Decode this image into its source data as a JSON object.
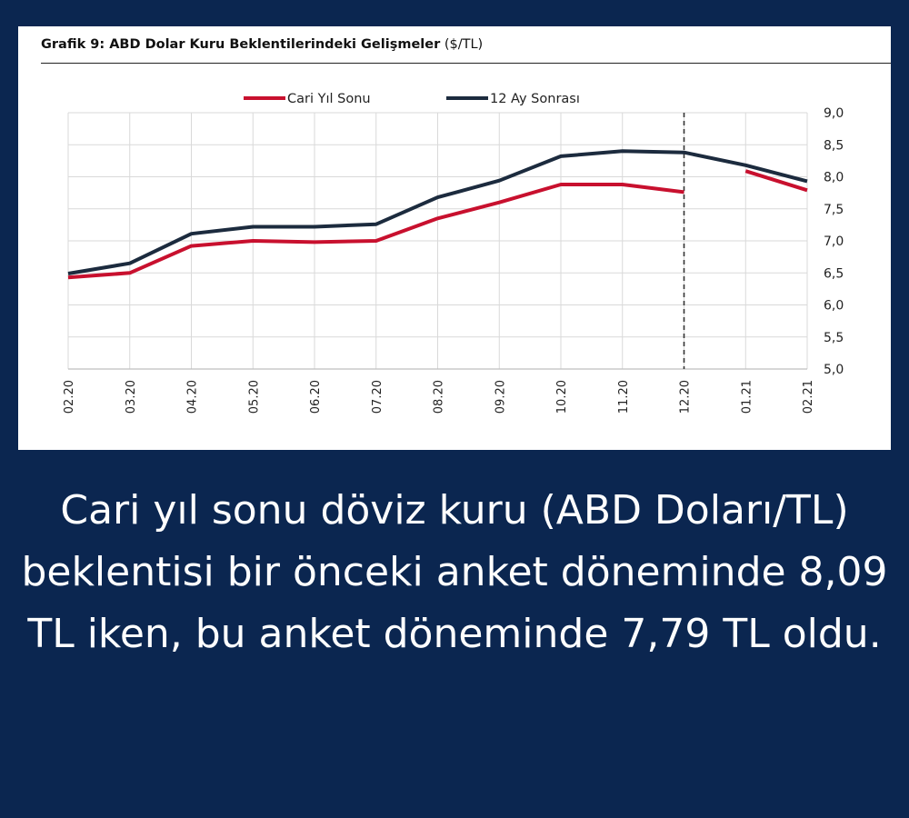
{
  "chart_data": {
    "type": "line",
    "title_bold": "Grafik 9: ABD Dolar Kuru Beklentilerindeki Gelişmeler",
    "title_unit": "($/TL)",
    "categories": [
      "02.20",
      "03.20",
      "04.20",
      "05.20",
      "06.20",
      "07.20",
      "08.20",
      "09.20",
      "10.20",
      "11.20",
      "12.20",
      "01.21",
      "02.21"
    ],
    "ylim": [
      5.0,
      9.0
    ],
    "yticks": [
      "5,0",
      "5,5",
      "6,0",
      "6,5",
      "7,0",
      "7,5",
      "8,0",
      "8,5",
      "9,0"
    ],
    "y_axis_side": "right",
    "grid": true,
    "legend_position": "top",
    "vertical_marker_after": "12.20",
    "series": [
      {
        "name": "Cari Yıl Sonu",
        "color": "#c8102e",
        "segments": [
          [
            6.43,
            6.5,
            6.92,
            7.0,
            6.98,
            7.0,
            7.35,
            7.6,
            7.88,
            7.88,
            7.76,
            null,
            null
          ],
          [
            null,
            null,
            null,
            null,
            null,
            null,
            null,
            null,
            null,
            null,
            null,
            8.09,
            7.79
          ]
        ]
      },
      {
        "name": "12 Ay Sonrası",
        "color": "#1c2b3e",
        "values": [
          6.49,
          6.65,
          7.11,
          7.22,
          7.22,
          7.26,
          7.68,
          7.94,
          8.32,
          8.4,
          8.38,
          8.18,
          7.93
        ]
      }
    ]
  },
  "caption": "Cari yıl sonu döviz kuru (ABD Doları/TL) beklentisi bir önceki anket döneminde 8,09 TL iken, bu anket döneminde 7,79 TL oldu."
}
